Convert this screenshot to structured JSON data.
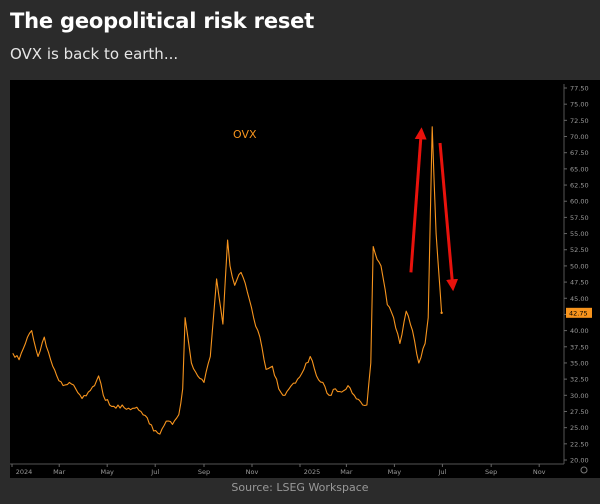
{
  "header": {
    "title": "The geopolitical risk reset",
    "subtitle": "OVX is back to earth..."
  },
  "footer": {
    "source": "Source: LSEG Workspace"
  },
  "colors": {
    "background": "#2b2b2b",
    "plot_background": "#000000",
    "line": "#f7941d",
    "arrow": "#e8120c",
    "last_value_badge": "#f7941d"
  },
  "chart_data": {
    "type": "line",
    "series": [
      {
        "name": "OVX",
        "color": "#f7941d",
        "x": [
          "2024-01-02",
          "2024-01-10",
          "2024-01-18",
          "2024-01-26",
          "2024-02-03",
          "2024-02-11",
          "2024-02-19",
          "2024-02-27",
          "2024-03-06",
          "2024-03-14",
          "2024-03-22",
          "2024-03-30",
          "2024-04-07",
          "2024-04-15",
          "2024-04-20",
          "2024-04-26",
          "2024-05-04",
          "2024-05-12",
          "2024-05-20",
          "2024-05-28",
          "2024-06-05",
          "2024-06-13",
          "2024-06-21",
          "2024-06-29",
          "2024-07-07",
          "2024-07-15",
          "2024-07-23",
          "2024-07-31",
          "2024-08-05",
          "2024-08-08",
          "2024-08-16",
          "2024-08-24",
          "2024-09-01",
          "2024-09-09",
          "2024-09-17",
          "2024-09-25",
          "2024-10-01",
          "2024-10-04",
          "2024-10-10",
          "2024-10-18",
          "2024-10-26",
          "2024-11-03",
          "2024-11-11",
          "2024-11-19",
          "2024-11-27",
          "2024-12-05",
          "2024-12-13",
          "2024-12-21",
          "2024-12-29",
          "2025-01-06",
          "2025-01-14",
          "2025-01-22",
          "2025-01-30",
          "2025-02-07",
          "2025-02-15",
          "2025-02-23",
          "2025-03-03",
          "2025-03-11",
          "2025-03-19",
          "2025-03-27",
          "2025-04-01",
          "2025-04-04",
          "2025-04-09",
          "2025-04-14",
          "2025-04-22",
          "2025-04-30",
          "2025-05-08",
          "2025-05-16",
          "2025-05-24",
          "2025-06-01",
          "2025-06-09",
          "2025-06-13",
          "2025-06-18",
          "2025-06-23",
          "2025-06-30"
        ],
        "y": [
          36.5,
          35.5,
          38.0,
          40.0,
          36.0,
          39.0,
          35.5,
          33.0,
          31.5,
          32.0,
          31.0,
          29.5,
          30.5,
          31.5,
          33.0,
          30.0,
          28.5,
          28.0,
          28.5,
          28.0,
          28.0,
          27.5,
          26.5,
          24.5,
          24.0,
          26.0,
          25.5,
          27.0,
          31.0,
          42.0,
          35.0,
          33.0,
          32.0,
          36.0,
          48.0,
          41.0,
          54.0,
          50.0,
          47.0,
          49.0,
          46.0,
          42.0,
          39.0,
          34.0,
          34.5,
          31.0,
          30.0,
          31.5,
          32.5,
          34.0,
          36.0,
          33.0,
          32.0,
          30.0,
          31.0,
          30.5,
          31.5,
          30.0,
          29.0,
          28.5,
          35.0,
          53.0,
          51.0,
          50.0,
          44.0,
          42.0,
          38.0,
          43.0,
          40.0,
          35.0,
          38.0,
          42.0,
          71.5,
          55.0,
          42.75
        ]
      }
    ],
    "series_label": "OVX",
    "last_value": 42.75,
    "last_value_label": "42.75",
    "xlim": [
      "2024-01-01",
      "2025-11-30"
    ],
    "ylim": [
      20.0,
      77.5
    ],
    "yticks": [
      "20.00",
      "22.50",
      "25.00",
      "27.50",
      "30.00",
      "32.50",
      "35.00",
      "37.50",
      "40.00",
      "42.50",
      "45.00",
      "47.50",
      "50.00",
      "52.50",
      "55.00",
      "57.50",
      "60.00",
      "62.50",
      "65.00",
      "67.50",
      "70.00",
      "72.50",
      "75.00",
      "77.50"
    ],
    "xticks": [
      {
        "date": "2024-01-01",
        "label": "2024"
      },
      {
        "date": "2024-03-01",
        "label": "Mar"
      },
      {
        "date": "2024-05-01",
        "label": "May"
      },
      {
        "date": "2024-07-01",
        "label": "Jul"
      },
      {
        "date": "2024-09-01",
        "label": "Sep"
      },
      {
        "date": "2024-11-01",
        "label": "Nov"
      },
      {
        "date": "2025-01-01",
        "label": "2025"
      },
      {
        "date": "2025-03-01",
        "label": "Mar"
      },
      {
        "date": "2025-05-01",
        "label": "May"
      },
      {
        "date": "2025-07-01",
        "label": "Jul"
      },
      {
        "date": "2025-09-01",
        "label": "Sep"
      },
      {
        "date": "2025-11-01",
        "label": "Nov"
      }
    ],
    "annotations": [
      {
        "type": "arrow",
        "direction": "up",
        "from": {
          "date": "2025-05-22",
          "y": 49.0
        },
        "to": {
          "date": "2025-06-04",
          "y": 70.5
        }
      },
      {
        "type": "arrow",
        "direction": "down",
        "from": {
          "date": "2025-06-28",
          "y": 69.0
        },
        "to": {
          "date": "2025-07-14",
          "y": 47.0
        }
      }
    ],
    "grid": false,
    "legend": "none"
  }
}
